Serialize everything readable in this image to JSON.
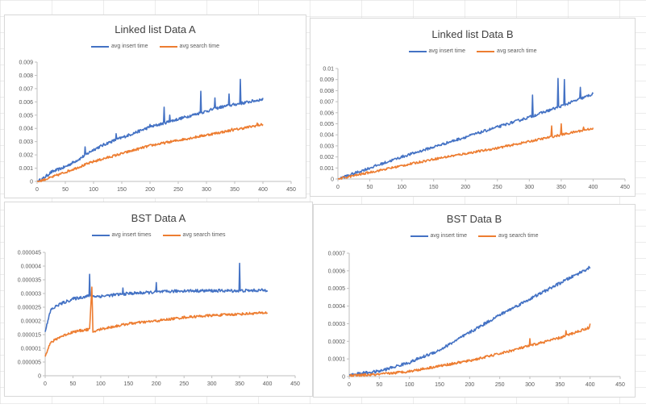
{
  "colors": {
    "insert": "#4472c4",
    "search": "#ed7d31",
    "axis": "#bfbfbf",
    "sheet_grid": "#d9d9d9",
    "background": "#ffffff"
  },
  "chart_data": [
    {
      "type": "line",
      "title": "Linked list Data A",
      "legend_position": "top",
      "grid": false,
      "xlabel": "",
      "ylabel": "",
      "xlim": [
        0,
        450
      ],
      "ylim": [
        0,
        0.009
      ],
      "x_ticks": [
        "0",
        "50",
        "100",
        "150",
        "200",
        "250",
        "300",
        "350",
        "400",
        "450"
      ],
      "y_ticks": [
        "0",
        "0.001",
        "0.002",
        "0.003",
        "0.004",
        "0.005",
        "0.006",
        "0.007",
        "0.008",
        "0.009"
      ],
      "series": [
        {
          "name": "avg insert time",
          "points": [
            [
              0,
              0
            ],
            [
              10,
              0.0002
            ],
            [
              25,
              0.0007
            ],
            [
              50,
              0.0011
            ],
            [
              75,
              0.0017
            ],
            [
              100,
              0.0024
            ],
            [
              125,
              0.0029
            ],
            [
              150,
              0.0033
            ],
            [
              175,
              0.0037
            ],
            [
              200,
              0.0041
            ],
            [
              225,
              0.0044
            ],
            [
              250,
              0.0047
            ],
            [
              275,
              0.005
            ],
            [
              300,
              0.0053
            ],
            [
              325,
              0.0056
            ],
            [
              350,
              0.0058
            ],
            [
              375,
              0.006
            ],
            [
              400,
              0.0062
            ]
          ],
          "spikes": [
            [
              85,
              0.0026
            ],
            [
              140,
              0.0036
            ],
            [
              200,
              0.0043
            ],
            [
              225,
              0.0056
            ],
            [
              235,
              0.005
            ],
            [
              290,
              0.0068
            ],
            [
              315,
              0.0063
            ],
            [
              340,
              0.0066
            ],
            [
              360,
              0.0077
            ]
          ]
        },
        {
          "name": "avg search time",
          "points": [
            [
              0,
              0
            ],
            [
              10,
              0.0001
            ],
            [
              25,
              0.0003
            ],
            [
              50,
              0.0007
            ],
            [
              75,
              0.0011
            ],
            [
              100,
              0.0015
            ],
            [
              125,
              0.0018
            ],
            [
              150,
              0.0021
            ],
            [
              175,
              0.0024
            ],
            [
              200,
              0.0027
            ],
            [
              225,
              0.0029
            ],
            [
              250,
              0.0031
            ],
            [
              275,
              0.0033
            ],
            [
              300,
              0.0035
            ],
            [
              325,
              0.0037
            ],
            [
              350,
              0.0039
            ],
            [
              375,
              0.0041
            ],
            [
              400,
              0.0043
            ]
          ],
          "spikes": [
            [
              345,
              0.004
            ],
            [
              390,
              0.0044
            ]
          ]
        }
      ]
    },
    {
      "type": "line",
      "title": "Linked list Data B",
      "legend_position": "top",
      "grid": false,
      "xlabel": "",
      "ylabel": "",
      "xlim": [
        0,
        450
      ],
      "ylim": [
        0,
        0.01
      ],
      "x_ticks": [
        "0",
        "50",
        "100",
        "150",
        "200",
        "250",
        "300",
        "350",
        "400",
        "450"
      ],
      "y_ticks": [
        "0",
        "0.001",
        "0.002",
        "0.003",
        "0.004",
        "0.005",
        "0.006",
        "0.007",
        "0.008",
        "0.009",
        "0.01"
      ],
      "series": [
        {
          "name": "avg insert time",
          "points": [
            [
              0,
              0
            ],
            [
              50,
              0.001
            ],
            [
              100,
              0.002
            ],
            [
              150,
              0.0029
            ],
            [
              200,
              0.0038
            ],
            [
              250,
              0.0047
            ],
            [
              300,
              0.0056
            ],
            [
              350,
              0.0066
            ],
            [
              400,
              0.0077
            ]
          ],
          "spikes": [
            [
              305,
              0.0076
            ],
            [
              345,
              0.0091
            ],
            [
              355,
              0.009
            ],
            [
              380,
              0.0083
            ]
          ]
        },
        {
          "name": "avg search time",
          "points": [
            [
              0,
              0
            ],
            [
              50,
              0.0006
            ],
            [
              100,
              0.0012
            ],
            [
              150,
              0.0018
            ],
            [
              200,
              0.0023
            ],
            [
              250,
              0.0028
            ],
            [
              300,
              0.0034
            ],
            [
              350,
              0.004
            ],
            [
              400,
              0.0046
            ]
          ],
          "spikes": [
            [
              335,
              0.0048
            ],
            [
              350,
              0.005
            ],
            [
              385,
              0.0047
            ]
          ]
        }
      ]
    },
    {
      "type": "line",
      "title": "BST Data A",
      "legend_position": "top",
      "grid": false,
      "xlabel": "",
      "ylabel": "",
      "xlim": [
        0,
        450
      ],
      "ylim": [
        0,
        4.5e-05
      ],
      "x_ticks": [
        "0",
        "50",
        "100",
        "150",
        "200",
        "250",
        "300",
        "350",
        "400",
        "450"
      ],
      "y_ticks": [
        "0",
        "0.000005",
        "0.00001",
        "0.000015",
        "0.00002",
        "0.000025",
        "0.00003",
        "0.000035",
        "0.00004",
        "0.000045"
      ],
      "series": [
        {
          "name": "avg insert times",
          "points": [
            [
              0,
              1.6e-05
            ],
            [
              5,
              2e-05
            ],
            [
              10,
              2.4e-05
            ],
            [
              25,
              2.6e-05
            ],
            [
              50,
              2.8e-05
            ],
            [
              75,
              2.9e-05
            ],
            [
              100,
              2.9e-05
            ],
            [
              150,
              3e-05
            ],
            [
              200,
              3.05e-05
            ],
            [
              250,
              3.1e-05
            ],
            [
              300,
              3.1e-05
            ],
            [
              350,
              3.1e-05
            ],
            [
              400,
              3.12e-05
            ]
          ],
          "spikes": [
            [
              80,
              3.7e-05
            ],
            [
              140,
              3.2e-05
            ],
            [
              200,
              3.4e-05
            ],
            [
              350,
              4.1e-05
            ]
          ]
        },
        {
          "name": "avg search times",
          "points": [
            [
              0,
              7e-06
            ],
            [
              5,
              1e-05
            ],
            [
              10,
              1.2e-05
            ],
            [
              25,
              1.4e-05
            ],
            [
              50,
              1.6e-05
            ],
            [
              80,
              1.7e-05
            ],
            [
              84,
              3.2e-05
            ],
            [
              86,
              1.6e-05
            ],
            [
              100,
              1.7e-05
            ],
            [
              150,
              1.9e-05
            ],
            [
              200,
              2e-05
            ],
            [
              250,
              2.13e-05
            ],
            [
              300,
              2.2e-05
            ],
            [
              350,
              2.25e-05
            ],
            [
              400,
              2.3e-05
            ]
          ],
          "spikes": []
        }
      ]
    },
    {
      "type": "line",
      "title": "BST Data B",
      "legend_position": "top",
      "grid": false,
      "xlabel": "",
      "ylabel": "",
      "xlim": [
        0,
        450
      ],
      "ylim": [
        0,
        0.0007
      ],
      "x_ticks": [
        "0",
        "50",
        "100",
        "150",
        "200",
        "250",
        "300",
        "350",
        "400",
        "450"
      ],
      "y_ticks": [
        "0",
        "0.0001",
        "0.0002",
        "0.0003",
        "0.0004",
        "0.0005",
        "0.0006",
        "0.0007"
      ],
      "series": [
        {
          "name": "avg insert time",
          "points": [
            [
              0,
              1e-05
            ],
            [
              50,
              3e-05
            ],
            [
              100,
              8e-05
            ],
            [
              150,
              0.00015
            ],
            [
              200,
              0.00025
            ],
            [
              250,
              0.00035
            ],
            [
              300,
              0.00044
            ],
            [
              350,
              0.00053
            ],
            [
              400,
              0.00062
            ]
          ],
          "spikes": []
        },
        {
          "name": "avg search time",
          "points": [
            [
              0,
              5e-06
            ],
            [
              50,
              1.2e-05
            ],
            [
              100,
              3e-05
            ],
            [
              150,
              6e-05
            ],
            [
              200,
              9e-05
            ],
            [
              250,
              0.00013
            ],
            [
              300,
              0.000175
            ],
            [
              350,
              0.00022
            ],
            [
              400,
              0.00028
            ]
          ],
          "spikes": [
            [
              300,
              0.000215
            ],
            [
              360,
              0.00026
            ],
            [
              400,
              0.0003
            ]
          ]
        }
      ]
    }
  ]
}
